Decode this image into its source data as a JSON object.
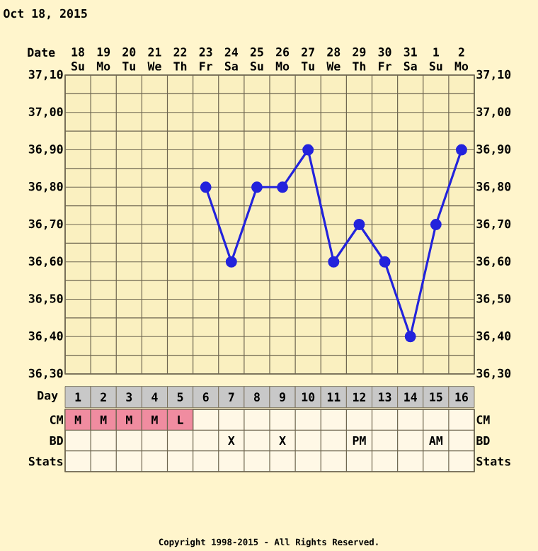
{
  "chart_data": [
    {
      "type": "line",
      "title": "Oct 18, 2015",
      "xlabel": "Date",
      "categories": [
        "18",
        "19",
        "20",
        "21",
        "22",
        "23",
        "24",
        "25",
        "26",
        "27",
        "28",
        "29",
        "30",
        "31",
        "1",
        "2"
      ],
      "series": [
        {
          "color": "#2323dc",
          "values": [
            null,
            null,
            null,
            null,
            null,
            36.8,
            36.6,
            36.8,
            36.8,
            36.9,
            36.6,
            36.7,
            36.6,
            36.4,
            36.7,
            36.9
          ]
        }
      ],
      "ylim": [
        36.3,
        37.1
      ],
      "yticks": [
        {
          "value": 36.3,
          "label": "36,30"
        },
        {
          "value": 36.4,
          "label": "36,40"
        },
        {
          "value": 36.5,
          "label": "36,50"
        },
        {
          "value": 36.6,
          "label": "36,60"
        },
        {
          "value": 36.7,
          "label": "36,70"
        },
        {
          "value": 36.8,
          "label": "36,80"
        },
        {
          "value": 36.9,
          "label": "36,90"
        },
        {
          "value": 37.0,
          "label": "37,00"
        },
        {
          "value": 37.1,
          "label": "37,10"
        }
      ],
      "y2lim": [
        36.3,
        37.1
      ],
      "y2ticks": [
        {
          "value": 36.3,
          "label": "36,30"
        },
        {
          "value": 36.4,
          "label": "36,40"
        },
        {
          "value": 36.5,
          "label": "36,50"
        },
        {
          "value": 36.6,
          "label": "36,60"
        },
        {
          "value": 36.7,
          "label": "36,70"
        },
        {
          "value": 36.8,
          "label": "36,80"
        },
        {
          "value": 36.9,
          "label": "36,90"
        },
        {
          "value": 37.0,
          "label": "37,00"
        },
        {
          "value": 37.1,
          "label": "37,10"
        }
      ],
      "grid": true,
      "marker": "circle",
      "line_style": "solid",
      "annotations": [
        "Su",
        "Mo",
        "Tu",
        "We",
        "Th",
        "Fr",
        "Sa",
        "Su",
        "Mo",
        "Tu",
        "We",
        "Th",
        "Fr",
        "Sa",
        "Su",
        "Mo"
      ]
    },
    {
      "type": "heatmap",
      "xlabel": "Day",
      "categories": [
        "1",
        "2",
        "3",
        "4",
        "5",
        "6",
        "7",
        "8",
        "9",
        "10",
        "11",
        "12",
        "13",
        "14",
        "15",
        "16"
      ],
      "y_categories": [
        "CM",
        "BD",
        "Stats"
      ],
      "y2_categories": [
        "CM",
        "BD",
        "Stats"
      ],
      "cells": [
        [
          null,
          null,
          null,
          null,
          null,
          null,
          null,
          null,
          null,
          null,
          null,
          null,
          null,
          null,
          null,
          null
        ],
        [
          null,
          null,
          null,
          null,
          null,
          null,
          null,
          null,
          null,
          null,
          null,
          null,
          null,
          null,
          null,
          null
        ],
        [
          null,
          null,
          null,
          null,
          null,
          null,
          null,
          null,
          null,
          null,
          null,
          null,
          null,
          null,
          null,
          null
        ]
      ],
      "cell_labels": [
        [
          "M",
          "M",
          "M",
          "M",
          "L",
          null,
          null,
          null,
          null,
          null,
          null,
          null,
          null,
          null,
          null,
          null
        ],
        [
          null,
          null,
          null,
          null,
          null,
          null,
          "X",
          null,
          "X",
          null,
          null,
          "PM",
          null,
          null,
          "AM",
          null
        ],
        [
          null,
          null,
          null,
          null,
          null,
          null,
          null,
          null,
          null,
          null,
          null,
          null,
          null,
          null,
          null,
          null
        ]
      ],
      "annotations": [
        "Copyright 1998-2015 - All Rights Reserved."
      ]
    }
  ]
}
